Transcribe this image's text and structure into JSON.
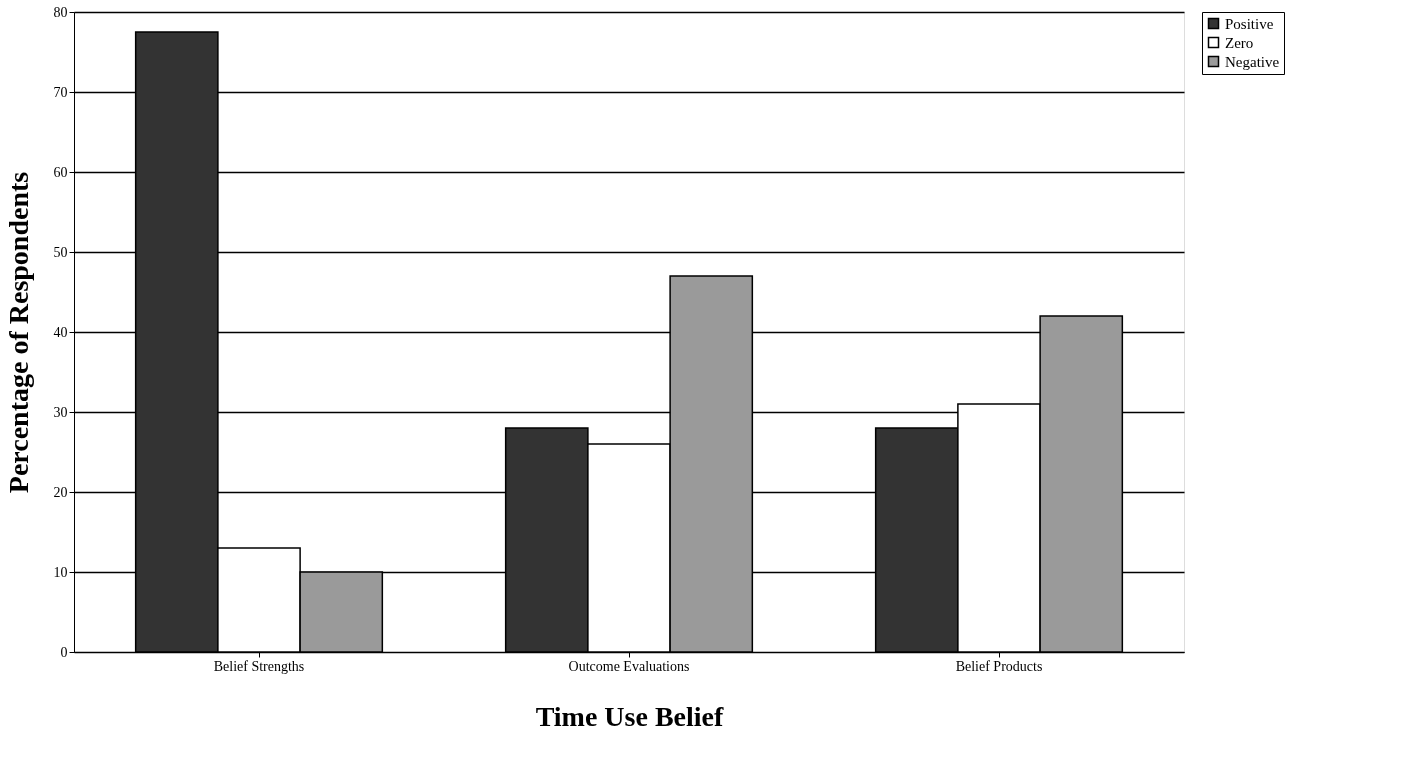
{
  "chart_data": {
    "type": "bar",
    "xlabel": "Time Use Belief",
    "ylabel": "Percentage of Respondents",
    "categories": [
      "Belief Strengths",
      "Outcome Evaluations",
      "Belief Products"
    ],
    "series": [
      {
        "name": "Positive",
        "color": "#333333",
        "values": [
          77.5,
          28,
          28
        ]
      },
      {
        "name": "Zero",
        "color": "#ffffff",
        "values": [
          13,
          26,
          31
        ]
      },
      {
        "name": "Negative",
        "color": "#9a9a9a",
        "values": [
          10,
          47,
          42
        ]
      }
    ],
    "ylim": [
      0,
      80
    ],
    "yticks": [
      0,
      10,
      20,
      30,
      40,
      50,
      60,
      70,
      80
    ],
    "grid": "y",
    "legend": "right"
  }
}
